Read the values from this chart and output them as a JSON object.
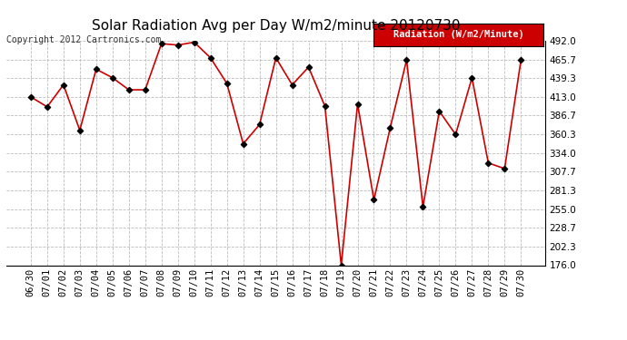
{
  "title": "Solar Radiation Avg per Day W/m2/minute 20120730",
  "copyright_text": "Copyright 2012 Cartronics.com",
  "legend_label": "Radiation (W/m2/Minute)",
  "dates": [
    "06/30",
    "07/01",
    "07/02",
    "07/03",
    "07/04",
    "07/05",
    "07/06",
    "07/07",
    "07/08",
    "07/09",
    "07/10",
    "07/11",
    "07/12",
    "07/13",
    "07/14",
    "07/15",
    "07/16",
    "07/17",
    "07/18",
    "07/19",
    "07/20",
    "07/21",
    "07/22",
    "07/23",
    "07/24",
    "07/25",
    "07/26",
    "07/27",
    "07/28",
    "07/29",
    "07/30"
  ],
  "values": [
    413.0,
    399.0,
    430.0,
    366.0,
    452.0,
    440.0,
    423.0,
    423.0,
    488.0,
    486.0,
    490.0,
    468.0,
    432.0,
    347.0,
    374.0,
    468.0,
    430.0,
    455.0,
    400.0,
    176.0,
    403.0,
    268.0,
    370.0,
    465.0,
    258.0,
    393.0,
    360.0,
    440.0,
    320.0,
    312.0,
    465.0
  ],
  "line_color": "#cc0000",
  "marker_color": "#000000",
  "background_color": "#ffffff",
  "grid_color": "#bbbbbb",
  "ylim": [
    176.0,
    492.0
  ],
  "yticks": [
    176.0,
    202.3,
    228.7,
    255.0,
    281.3,
    307.7,
    334.0,
    360.3,
    386.7,
    413.0,
    439.3,
    465.7,
    492.0
  ],
  "legend_bg": "#cc0000",
  "legend_text_color": "#ffffff",
  "title_fontsize": 11,
  "copyright_fontsize": 7,
  "tick_fontsize": 7.5
}
